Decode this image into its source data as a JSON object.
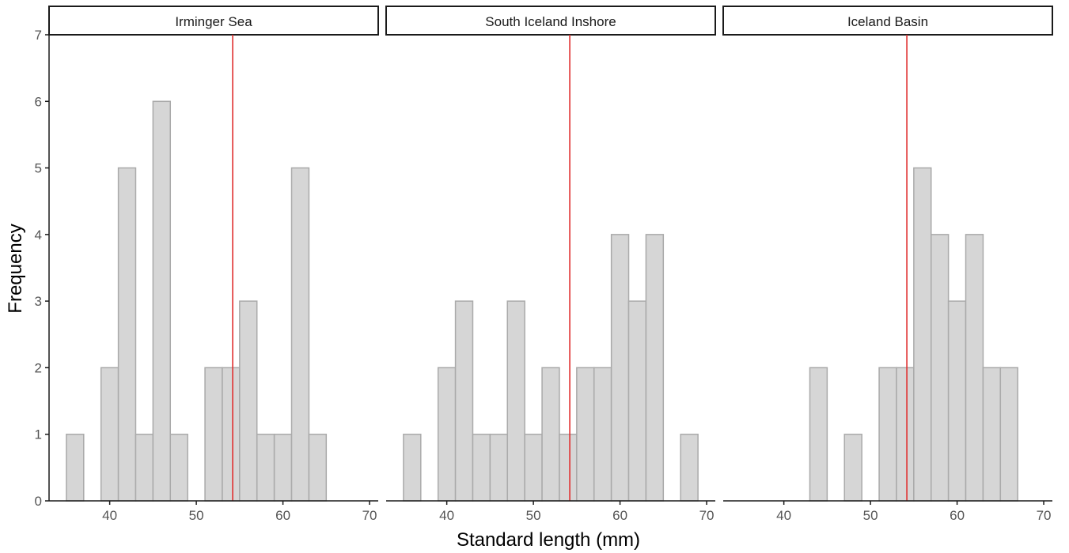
{
  "chart_data": {
    "type": "bar",
    "subtype": "faceted-histogram",
    "xlabel": "Standard length (mm)",
    "ylabel": "Frequency",
    "xlim": [
      33,
      71
    ],
    "ylim": [
      0,
      7
    ],
    "xticks": [
      40,
      50,
      60,
      70
    ],
    "yticks": [
      0,
      1,
      2,
      3,
      4,
      5,
      6,
      7
    ],
    "bin_width": 2,
    "vline": {
      "x": 54.2,
      "color": "#e03030"
    },
    "bar_fill": "#d6d6d6",
    "bar_stroke": "#aaaaaa",
    "grid": false,
    "panels": [
      {
        "name": "Irminger Sea",
        "bins": [
          {
            "x0": 35,
            "x1": 37,
            "count": 1
          },
          {
            "x0": 37,
            "x1": 39,
            "count": 0
          },
          {
            "x0": 39,
            "x1": 41,
            "count": 2
          },
          {
            "x0": 41,
            "x1": 43,
            "count": 5
          },
          {
            "x0": 43,
            "x1": 45,
            "count": 1
          },
          {
            "x0": 45,
            "x1": 47,
            "count": 6
          },
          {
            "x0": 47,
            "x1": 49,
            "count": 1
          },
          {
            "x0": 49,
            "x1": 51,
            "count": 0
          },
          {
            "x0": 51,
            "x1": 53,
            "count": 2
          },
          {
            "x0": 53,
            "x1": 55,
            "count": 2
          },
          {
            "x0": 55,
            "x1": 57,
            "count": 3
          },
          {
            "x0": 57,
            "x1": 59,
            "count": 1
          },
          {
            "x0": 59,
            "x1": 61,
            "count": 1
          },
          {
            "x0": 61,
            "x1": 63,
            "count": 5
          },
          {
            "x0": 63,
            "x1": 65,
            "count": 1
          }
        ]
      },
      {
        "name": "South Iceland Inshore",
        "bins": [
          {
            "x0": 35,
            "x1": 37,
            "count": 1
          },
          {
            "x0": 37,
            "x1": 39,
            "count": 0
          },
          {
            "x0": 39,
            "x1": 41,
            "count": 2
          },
          {
            "x0": 41,
            "x1": 43,
            "count": 3
          },
          {
            "x0": 43,
            "x1": 45,
            "count": 1
          },
          {
            "x0": 45,
            "x1": 47,
            "count": 1
          },
          {
            "x0": 47,
            "x1": 49,
            "count": 3
          },
          {
            "x0": 49,
            "x1": 51,
            "count": 1
          },
          {
            "x0": 51,
            "x1": 53,
            "count": 2
          },
          {
            "x0": 53,
            "x1": 55,
            "count": 1
          },
          {
            "x0": 55,
            "x1": 57,
            "count": 2
          },
          {
            "x0": 57,
            "x1": 59,
            "count": 2
          },
          {
            "x0": 59,
            "x1": 61,
            "count": 4
          },
          {
            "x0": 61,
            "x1": 63,
            "count": 3
          },
          {
            "x0": 63,
            "x1": 65,
            "count": 4
          },
          {
            "x0": 65,
            "x1": 67,
            "count": 0
          },
          {
            "x0": 67,
            "x1": 69,
            "count": 1
          }
        ]
      },
      {
        "name": "Iceland Basin",
        "bins": [
          {
            "x0": 43,
            "x1": 45,
            "count": 2
          },
          {
            "x0": 45,
            "x1": 47,
            "count": 0
          },
          {
            "x0": 47,
            "x1": 49,
            "count": 1
          },
          {
            "x0": 49,
            "x1": 51,
            "count": 0
          },
          {
            "x0": 51,
            "x1": 53,
            "count": 2
          },
          {
            "x0": 53,
            "x1": 55,
            "count": 2
          },
          {
            "x0": 55,
            "x1": 57,
            "count": 5
          },
          {
            "x0": 57,
            "x1": 59,
            "count": 4
          },
          {
            "x0": 59,
            "x1": 61,
            "count": 3
          },
          {
            "x0": 61,
            "x1": 63,
            "count": 4
          },
          {
            "x0": 63,
            "x1": 65,
            "count": 2
          },
          {
            "x0": 65,
            "x1": 67,
            "count": 2
          }
        ]
      }
    ]
  }
}
